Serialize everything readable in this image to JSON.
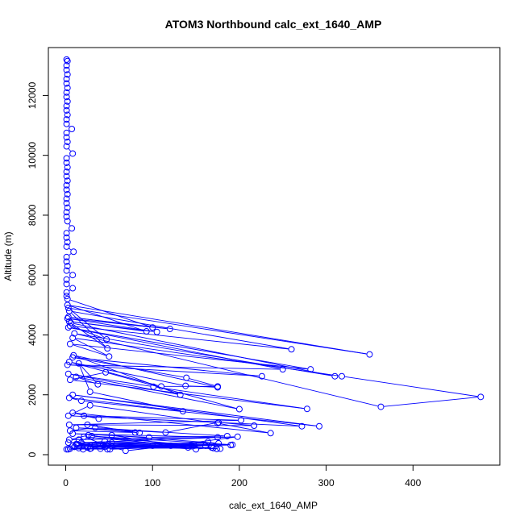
{
  "chart_data": {
    "type": "line",
    "title": "ATOM3 Northbound calc_ext_1640_AMP",
    "xlabel": "calc_ext_1640_AMP",
    "ylabel": "Altitude (m)",
    "xlim": [
      -20,
      500
    ],
    "ylim": [
      -350,
      13600
    ],
    "xticks": [
      0,
      100,
      200,
      300,
      400
    ],
    "yticks": [
      0,
      2000,
      4000,
      6000,
      8000,
      10000,
      12000
    ],
    "grid": false,
    "legend": "none",
    "series": [
      {
        "color": "#0000ff",
        "marker": "open-circle",
        "points": [
          [
            1,
            13200
          ],
          [
            2,
            13150
          ],
          [
            1,
            13000
          ],
          [
            1,
            12850
          ],
          [
            2,
            12700
          ],
          [
            1,
            12550
          ],
          [
            1,
            12400
          ],
          [
            2,
            12250
          ],
          [
            1,
            12100
          ],
          [
            1,
            11950
          ],
          [
            2,
            11800
          ],
          [
            1,
            11650
          ],
          [
            1,
            11500
          ],
          [
            2,
            11350
          ],
          [
            1,
            11200
          ],
          [
            1,
            11050
          ],
          [
            7,
            10880
          ],
          [
            1,
            10750
          ],
          [
            1,
            10600
          ],
          [
            2,
            10450
          ],
          [
            1,
            10300
          ],
          [
            8,
            10060
          ],
          [
            1,
            9900
          ],
          [
            1,
            9750
          ],
          [
            2,
            9600
          ],
          [
            1,
            9450
          ],
          [
            1,
            9300
          ],
          [
            2,
            9150
          ],
          [
            1,
            9000
          ],
          [
            1,
            8850
          ],
          [
            2,
            8700
          ],
          [
            1,
            8550
          ],
          [
            1,
            8400
          ],
          [
            2,
            8250
          ],
          [
            1,
            8100
          ],
          [
            1,
            7950
          ],
          [
            2,
            7800
          ],
          [
            7,
            7560
          ],
          [
            1,
            7400
          ],
          [
            1,
            7250
          ],
          [
            2,
            7100
          ],
          [
            1,
            6950
          ],
          [
            9,
            6780
          ],
          [
            1,
            6600
          ],
          [
            1,
            6450
          ],
          [
            2,
            6300
          ],
          [
            1,
            6150
          ],
          [
            8,
            6000
          ],
          [
            1,
            5850
          ],
          [
            1,
            5700
          ],
          [
            8,
            5560
          ],
          [
            1,
            5420
          ],
          [
            1,
            5300
          ],
          [
            2,
            5200
          ],
          [
            100,
            4250
          ],
          [
            3,
            4600
          ],
          [
            120,
            4200
          ],
          [
            2,
            4550
          ],
          [
            105,
            4100
          ],
          [
            4,
            4450
          ],
          [
            93,
            4120
          ],
          [
            2,
            5000
          ],
          [
            350,
            3350
          ],
          [
            3,
            4900
          ],
          [
            47,
            3850
          ],
          [
            5,
            4300
          ],
          [
            260,
            3520
          ],
          [
            4,
            4800
          ],
          [
            48,
            3550
          ],
          [
            6,
            4400
          ],
          [
            310,
            2620
          ],
          [
            10,
            4050
          ],
          [
            363,
            1600
          ],
          [
            478,
            1930
          ],
          [
            318,
            2620
          ],
          [
            8,
            3900
          ],
          [
            50,
            3280
          ],
          [
            5,
            3700
          ],
          [
            282,
            2850
          ],
          [
            3,
            4250
          ],
          [
            250,
            2850
          ],
          [
            2,
            3000
          ],
          [
            226,
            2620
          ],
          [
            8,
            3250
          ],
          [
            139,
            2570
          ],
          [
            175,
            2280
          ],
          [
            110,
            2280
          ],
          [
            4,
            3100
          ],
          [
            138,
            2300
          ],
          [
            175,
            2250
          ],
          [
            9,
            3320
          ],
          [
            132,
            2000
          ],
          [
            3,
            2700
          ],
          [
            101,
            2270
          ],
          [
            278,
            1530
          ],
          [
            5,
            2500
          ],
          [
            46,
            2750
          ],
          [
            200,
            1520
          ],
          [
            12,
            2600
          ],
          [
            37,
            2350
          ],
          [
            15,
            3050
          ],
          [
            28,
            2100
          ],
          [
            135,
            1450
          ],
          [
            4,
            1900
          ],
          [
            18,
            1800
          ],
          [
            292,
            950
          ],
          [
            8,
            2000
          ],
          [
            272,
            950
          ],
          [
            3,
            1300
          ],
          [
            28,
            1650
          ],
          [
            175,
            1050
          ],
          [
            236,
            720
          ],
          [
            8,
            1400
          ],
          [
            38,
            1200
          ],
          [
            21,
            1300
          ],
          [
            202,
            1150
          ],
          [
            4,
            1000
          ],
          [
            217,
            970
          ],
          [
            176,
            1080
          ],
          [
            115,
            740
          ],
          [
            12,
            900
          ],
          [
            85,
            730
          ],
          [
            25,
            1000
          ],
          [
            80,
            740
          ],
          [
            5,
            800
          ],
          [
            34,
            900
          ],
          [
            186,
            620
          ],
          [
            96,
            580
          ],
          [
            8,
            700
          ],
          [
            175,
            580
          ],
          [
            4,
            500
          ],
          [
            26,
            650
          ],
          [
            121,
            300
          ],
          [
            198,
            600
          ],
          [
            18,
            400
          ],
          [
            192,
            330
          ],
          [
            30,
            620
          ],
          [
            145,
            320
          ],
          [
            100,
            300
          ],
          [
            3,
            400
          ],
          [
            176,
            380
          ],
          [
            53,
            650
          ],
          [
            141,
            240
          ],
          [
            33,
            300
          ],
          [
            178,
            200
          ],
          [
            13,
            350
          ],
          [
            45,
            450
          ],
          [
            168,
            300
          ],
          [
            49,
            360
          ],
          [
            150,
            180
          ],
          [
            168,
            240
          ],
          [
            25,
            250
          ],
          [
            190,
            320
          ],
          [
            53,
            400
          ],
          [
            174,
            190
          ],
          [
            21,
            600
          ],
          [
            47,
            300
          ],
          [
            148,
            300
          ],
          [
            8,
            300
          ],
          [
            161,
            300
          ],
          [
            51,
            180
          ],
          [
            164,
            430
          ],
          [
            69,
            130
          ],
          [
            43,
            320
          ],
          [
            29,
            210
          ],
          [
            170,
            220
          ],
          [
            12,
            350
          ],
          [
            45,
            260
          ],
          [
            40,
            200
          ],
          [
            15,
            500
          ],
          [
            20,
            180
          ],
          [
            10,
            260
          ],
          [
            53,
            280
          ],
          [
            25,
            240
          ],
          [
            5,
            200
          ],
          [
            48,
            180
          ],
          [
            15,
            220
          ],
          [
            3,
            180
          ],
          [
            28,
            200
          ],
          [
            1,
            180
          ]
        ]
      }
    ]
  }
}
